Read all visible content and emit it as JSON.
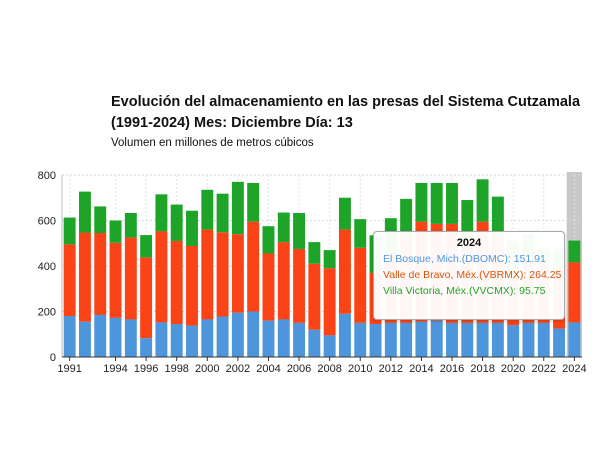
{
  "chart_data": {
    "type": "bar",
    "stacked": true,
    "title": "Evolución del almacenamiento en las presas del Sistema Cutzamala (1991-2024) Mes: Diciembre Día: 13",
    "subtitle": "Volumen en millones de metros cúbicos",
    "xlabel": "",
    "ylabel": "",
    "ylim": [
      0,
      800
    ],
    "yticks": [
      "0",
      "200",
      "400",
      "600",
      "800"
    ],
    "grid": true,
    "highlight_category": "2024",
    "categories": [
      "1991",
      "1992",
      "1993",
      "1994",
      "1995",
      "1996",
      "1997",
      "1998",
      "1999",
      "2000",
      "2001",
      "2002",
      "2003",
      "2004",
      "2005",
      "2006",
      "2007",
      "2008",
      "2009",
      "2010",
      "2011",
      "2012",
      "2013",
      "2014",
      "2015",
      "2016",
      "2017",
      "2018",
      "2019",
      "2020",
      "2021",
      "2022",
      "2023",
      "2024"
    ],
    "xtick_labels": [
      "1991",
      "1994",
      "1996",
      "1998",
      "2000",
      "2002",
      "2004",
      "2006",
      "2008",
      "2010",
      "2012",
      "2014",
      "2016",
      "2018",
      "2020",
      "2022",
      "2024"
    ],
    "series": [
      {
        "name": "El Bosque, Mich.(DBOMC)",
        "color": "#4e96dc",
        "values": [
          180,
          155,
          185,
          172,
          165,
          83,
          152,
          145,
          138,
          165,
          178,
          195,
          200,
          160,
          165,
          150,
          120,
          95,
          190,
          150,
          145,
          150,
          150,
          155,
          160,
          150,
          150,
          150,
          150,
          140,
          150,
          150,
          125,
          151.91
        ]
      },
      {
        "name": "Valle de Bravo, Méx.(VBRMX)",
        "color": "#fa4316",
        "values": [
          315,
          392,
          360,
          330,
          360,
          355,
          400,
          365,
          350,
          395,
          370,
          345,
          395,
          295,
          340,
          325,
          290,
          295,
          370,
          330,
          225,
          310,
          385,
          440,
          425,
          435,
          360,
          445,
          375,
          200,
          300,
          260,
          260,
          264.25
        ]
      },
      {
        "name": "Villa Victoria, Méx.(VVCMX)",
        "color": "#1ea529",
        "values": [
          118,
          180,
          117,
          98,
          108,
          98,
          163,
          160,
          155,
          175,
          170,
          230,
          170,
          120,
          130,
          158,
          95,
          80,
          140,
          126,
          165,
          150,
          160,
          170,
          180,
          180,
          180,
          186,
          180,
          170,
          90,
          65,
          90,
          95.75
        ]
      }
    ]
  },
  "tooltip": {
    "title": "2024",
    "lines": [
      {
        "label": "El Bosque, Mich.(DBOMC): 151.91",
        "color": "#4e96dc"
      },
      {
        "label": "Valle de Bravo, Méx.(VBRMX): 264.25",
        "color": "#d9540a"
      },
      {
        "label": "Villa Victoria, Méx.(VVCMX): 95.75",
        "color": "#1ea529"
      }
    ]
  }
}
